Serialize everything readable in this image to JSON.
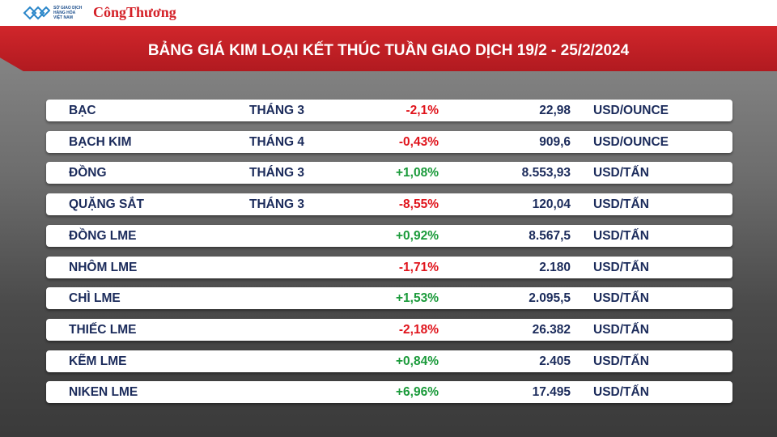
{
  "header": {
    "exchange_logo": [
      "SỞ GIAO DỊCH",
      "HÀNG HÓA",
      "VIỆT NAM"
    ],
    "brand": "CôngThương"
  },
  "title": "BẢNG GIÁ KIM LOẠI KẾT THÚC TUẦN GIAO DỊCH 19/2 - 25/2/2024",
  "table": {
    "rows": [
      {
        "name": "BẠC",
        "month": "THÁNG 3",
        "change": "-2,1%",
        "price": "22,98",
        "unit": "USD/OUNCE"
      },
      {
        "name": "BẠCH KIM",
        "month": "THÁNG 4",
        "change": "-0,43%",
        "price": "909,6",
        "unit": "USD/OUNCE"
      },
      {
        "name": "ĐỒNG",
        "month": "THÁNG 3",
        "change": "+1,08%",
        "price": "8.553,93",
        "unit": "USD/TẤN"
      },
      {
        "name": "QUẶNG SẮT",
        "month": "THÁNG 3",
        "change": "-8,55%",
        "price": "120,04",
        "unit": "USD/TẤN"
      },
      {
        "name": "ĐỒNG LME",
        "change": "+0,92%",
        "price": "8.567,5",
        "unit": "USD/TẤN"
      },
      {
        "name": "NHÔM LME",
        "change": "-1,71%",
        "price": "2.180",
        "unit": "USD/TẤN"
      },
      {
        "name": "CHÌ LME",
        "change": "+1,53%",
        "price": "2.095,5",
        "unit": "USD/TẤN"
      },
      {
        "name": "THIẾC LME",
        "change": "-2,18%",
        "price": "26.382",
        "unit": "USD/TẤN"
      },
      {
        "name": "KẼM LME",
        "change": "+0,84%",
        "price": "2.405",
        "unit": "USD/TẤN"
      },
      {
        "name": "NIKEN LME",
        "change": "+6,96%",
        "price": "17.495",
        "unit": "USD/TẤN"
      }
    ]
  }
}
